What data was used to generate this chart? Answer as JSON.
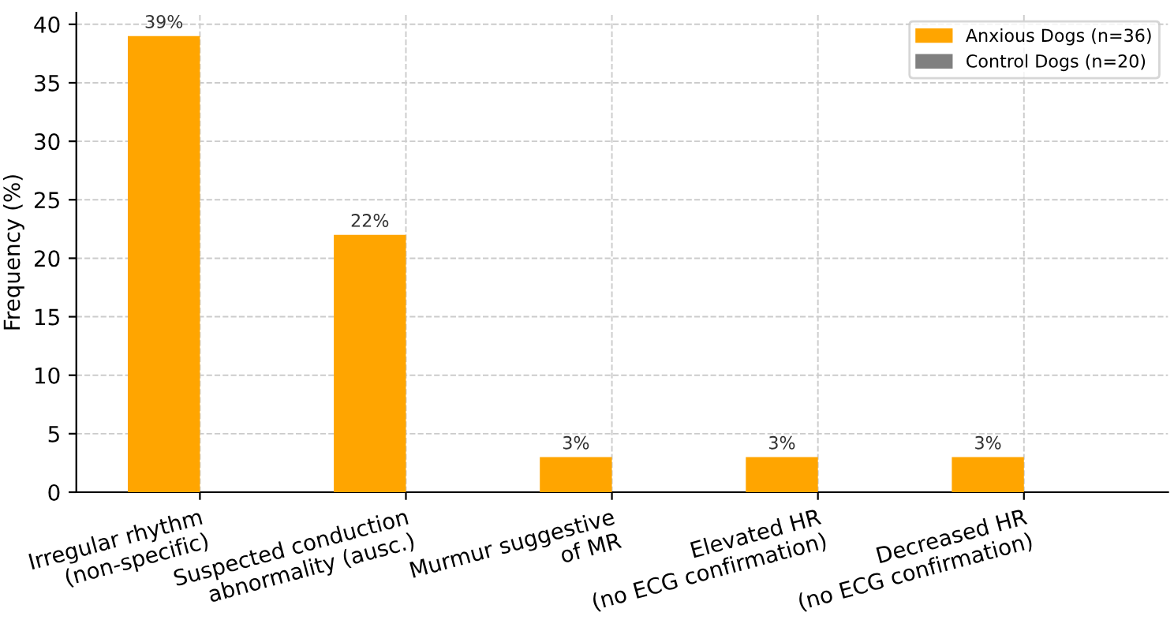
{
  "chart_data": {
    "type": "bar",
    "ylabel": "Frequency (%)",
    "categories": [
      "Irregular rhythm\n(non-specific)",
      "Suspected conduction\nabnormality (ausc.)",
      "Murmur suggestive\nof MR",
      "Elevated HR\n(no ECG confirmation)",
      "Decreased HR\n(no ECG confirmation)"
    ],
    "series": [
      {
        "name": "Anxious Dogs (n=36)",
        "color": "#ffa500",
        "values": [
          39,
          22,
          3,
          3,
          3
        ],
        "value_labels": [
          "39%",
          "22%",
          "3%",
          "3%",
          "3%"
        ]
      },
      {
        "name": "Control Dogs (n=20)",
        "color": "#808080",
        "values": [
          0,
          0,
          0,
          0,
          0
        ]
      }
    ],
    "ylim": [
      0,
      41
    ],
    "yticks": [
      0,
      5,
      10,
      15,
      20,
      25,
      30,
      35,
      40
    ],
    "grid": true,
    "legend": "top right"
  }
}
